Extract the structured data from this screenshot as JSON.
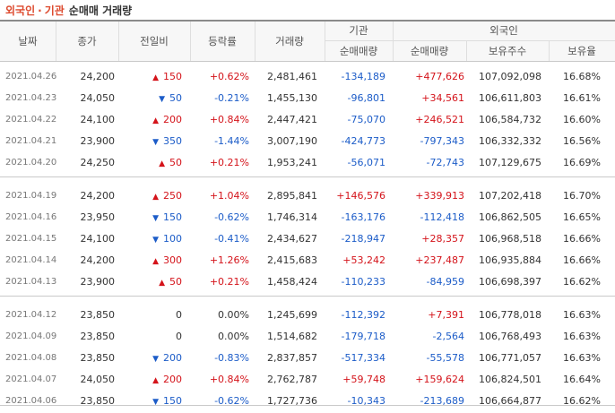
{
  "title": {
    "part1": "외국인",
    "sep": "·",
    "part2": "기관",
    "part3": "순매매 거래량"
  },
  "headers": {
    "date": "날짜",
    "close": "종가",
    "diff": "전일비",
    "rate": "등락률",
    "volume": "거래량",
    "institution": "기관",
    "foreign": "외국인",
    "inst_net": "순매매량",
    "foreign_net": "순매매량",
    "foreign_hold": "보유주수",
    "foreign_ratio": "보유율"
  },
  "colors": {
    "up": "#d4131a",
    "down": "#1c5cc8",
    "title_accent": "#dd4a2e"
  },
  "rows": [
    {
      "date": "2021.04.26",
      "close": "24,200",
      "dir": "up",
      "diff": "150",
      "rate": "+0.62%",
      "volume": "2,481,461",
      "inst": "-134,189",
      "fnet": "+477,626",
      "fhold": "107,092,098",
      "fratio": "16.68%"
    },
    {
      "date": "2021.04.23",
      "close": "24,050",
      "dir": "down",
      "diff": "50",
      "rate": "-0.21%",
      "volume": "1,455,130",
      "inst": "-96,801",
      "fnet": "+34,561",
      "fhold": "106,611,803",
      "fratio": "16.61%"
    },
    {
      "date": "2021.04.22",
      "close": "24,100",
      "dir": "up",
      "diff": "200",
      "rate": "+0.84%",
      "volume": "2,447,421",
      "inst": "-75,070",
      "fnet": "+246,521",
      "fhold": "106,584,732",
      "fratio": "16.60%"
    },
    {
      "date": "2021.04.21",
      "close": "23,900",
      "dir": "down",
      "diff": "350",
      "rate": "-1.44%",
      "volume": "3,007,190",
      "inst": "-424,773",
      "fnet": "-797,343",
      "fhold": "106,332,332",
      "fratio": "16.56%"
    },
    {
      "date": "2021.04.20",
      "close": "24,250",
      "dir": "up",
      "diff": "50",
      "rate": "+0.21%",
      "volume": "1,953,241",
      "inst": "-56,071",
      "fnet": "-72,743",
      "fhold": "107,129,675",
      "fratio": "16.69%"
    },
    {
      "date": "2021.04.19",
      "close": "24,200",
      "dir": "up",
      "diff": "250",
      "rate": "+1.04%",
      "volume": "2,895,841",
      "inst": "+146,576",
      "fnet": "+339,913",
      "fhold": "107,202,418",
      "fratio": "16.70%"
    },
    {
      "date": "2021.04.16",
      "close": "23,950",
      "dir": "down",
      "diff": "150",
      "rate": "-0.62%",
      "volume": "1,746,314",
      "inst": "-163,176",
      "fnet": "-112,418",
      "fhold": "106,862,505",
      "fratio": "16.65%"
    },
    {
      "date": "2021.04.15",
      "close": "24,100",
      "dir": "down",
      "diff": "100",
      "rate": "-0.41%",
      "volume": "2,434,627",
      "inst": "-218,947",
      "fnet": "+28,357",
      "fhold": "106,968,518",
      "fratio": "16.66%"
    },
    {
      "date": "2021.04.14",
      "close": "24,200",
      "dir": "up",
      "diff": "300",
      "rate": "+1.26%",
      "volume": "2,415,683",
      "inst": "+53,242",
      "fnet": "+237,487",
      "fhold": "106,935,884",
      "fratio": "16.66%"
    },
    {
      "date": "2021.04.13",
      "close": "23,900",
      "dir": "up",
      "diff": "50",
      "rate": "+0.21%",
      "volume": "1,458,424",
      "inst": "-110,233",
      "fnet": "-84,959",
      "fhold": "106,698,397",
      "fratio": "16.62%"
    },
    {
      "date": "2021.04.12",
      "close": "23,850",
      "dir": "flat",
      "diff": "0",
      "rate": "0.00%",
      "volume": "1,245,699",
      "inst": "-112,392",
      "fnet": "+7,391",
      "fhold": "106,778,018",
      "fratio": "16.63%"
    },
    {
      "date": "2021.04.09",
      "close": "23,850",
      "dir": "flat",
      "diff": "0",
      "rate": "0.00%",
      "volume": "1,514,682",
      "inst": "-179,718",
      "fnet": "-2,564",
      "fhold": "106,768,493",
      "fratio": "16.63%"
    },
    {
      "date": "2021.04.08",
      "close": "23,850",
      "dir": "down",
      "diff": "200",
      "rate": "-0.83%",
      "volume": "2,837,857",
      "inst": "-517,334",
      "fnet": "-55,578",
      "fhold": "106,771,057",
      "fratio": "16.63%"
    },
    {
      "date": "2021.04.07",
      "close": "24,050",
      "dir": "up",
      "diff": "200",
      "rate": "+0.84%",
      "volume": "2,762,787",
      "inst": "+59,748",
      "fnet": "+159,624",
      "fhold": "106,824,501",
      "fratio": "16.64%"
    },
    {
      "date": "2021.04.06",
      "close": "23,850",
      "dir": "down",
      "diff": "150",
      "rate": "-0.62%",
      "volume": "1,727,736",
      "inst": "-10,343",
      "fnet": "-213,689",
      "fhold": "106,664,877",
      "fratio": "16.62%"
    }
  ]
}
